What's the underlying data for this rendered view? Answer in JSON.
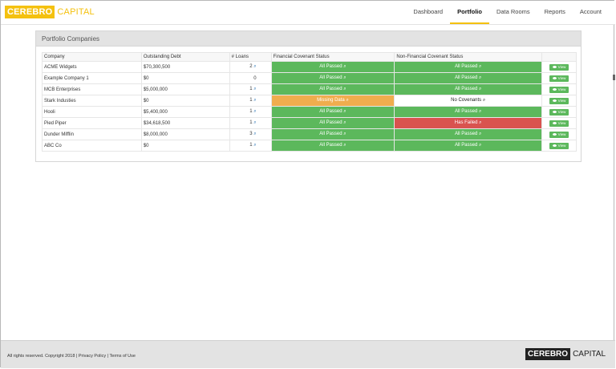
{
  "brand": {
    "part1": "CEREBRO",
    "part2": "CAPITAL",
    "color": "#f4c10f"
  },
  "nav": [
    {
      "label": "Dashboard",
      "active": false
    },
    {
      "label": "Portfolio",
      "active": true
    },
    {
      "label": "Data Rooms",
      "active": false
    },
    {
      "label": "Reports",
      "active": false
    },
    {
      "label": "Account",
      "active": false
    }
  ],
  "panel": {
    "title": "Portfolio Companies"
  },
  "table": {
    "headers": [
      "Company",
      "Outstanding Debt",
      "# Loans",
      "Financial Covenant Status",
      "Non-Financial Covenant Status",
      ""
    ],
    "rows": [
      {
        "company": "ACME Widgets",
        "debt": "$70,300,500",
        "loans": "2",
        "loans_link": true,
        "fin": "All Passed",
        "fin_state": "pass",
        "nonfin": "All Passed",
        "nonfin_state": "pass",
        "action": "View"
      },
      {
        "company": "Example Company 1",
        "debt": "$0",
        "loans": "0",
        "loans_link": false,
        "fin": "All Passed",
        "fin_state": "pass",
        "nonfin": "All Passed",
        "nonfin_state": "pass",
        "action": "View"
      },
      {
        "company": "MCB Enterprises",
        "debt": "$5,000,000",
        "loans": "1",
        "loans_link": true,
        "fin": "All Passed",
        "fin_state": "pass",
        "nonfin": "All Passed",
        "nonfin_state": "pass",
        "action": "View"
      },
      {
        "company": "Stark Industies",
        "debt": "$0",
        "loans": "1",
        "loans_link": true,
        "fin": "Missing Data",
        "fin_state": "warn",
        "nonfin": "No Covenants",
        "nonfin_state": "plain",
        "action": "View"
      },
      {
        "company": "Hooli",
        "debt": "$5,400,000",
        "loans": "1",
        "loans_link": true,
        "fin": "All Passed",
        "fin_state": "pass",
        "nonfin": "All Passed",
        "nonfin_state": "pass",
        "action": "View"
      },
      {
        "company": "Pied Piper",
        "debt": "$34,618,500",
        "loans": "1",
        "loans_link": true,
        "fin": "All Passed",
        "fin_state": "pass",
        "nonfin": "Has Failed",
        "nonfin_state": "fail",
        "action": "View"
      },
      {
        "company": "Dunder Mifflin",
        "debt": "$8,000,000",
        "loans": "3",
        "loans_link": true,
        "fin": "All Passed",
        "fin_state": "pass",
        "nonfin": "All Passed",
        "nonfin_state": "pass",
        "action": "View"
      },
      {
        "company": "ABC Co",
        "debt": "$0",
        "loans": "1",
        "loans_link": true,
        "fin": "All Passed",
        "fin_state": "pass",
        "nonfin": "All Passed",
        "nonfin_state": "pass",
        "action": "View"
      }
    ]
  },
  "footer": {
    "rights": "All rights reserved. Copyright 2018 |",
    "privacy": "Privacy Policy",
    "sep": "|",
    "terms": "Terms of Use",
    "logo_part1": "CEREBRO",
    "logo_part2": "CAPITAL"
  },
  "colors": {
    "pass": "#5cb85c",
    "warn": "#f0ad4e",
    "fail": "#d9534f",
    "accent": "#f4c10f"
  }
}
